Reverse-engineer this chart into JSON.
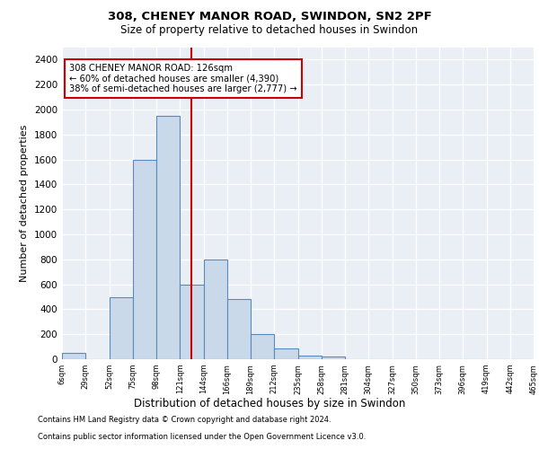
{
  "title1": "308, CHENEY MANOR ROAD, SWINDON, SN2 2PF",
  "title2": "Size of property relative to detached houses in Swindon",
  "xlabel": "Distribution of detached houses by size in Swindon",
  "ylabel": "Number of detached properties",
  "bin_labels": [
    "6sqm",
    "29sqm",
    "52sqm",
    "75sqm",
    "98sqm",
    "121sqm",
    "144sqm",
    "166sqm",
    "189sqm",
    "212sqm",
    "235sqm",
    "258sqm",
    "281sqm",
    "304sqm",
    "327sqm",
    "350sqm",
    "373sqm",
    "396sqm",
    "419sqm",
    "442sqm",
    "465sqm"
  ],
  "bar_values": [
    50,
    0,
    500,
    1600,
    1950,
    600,
    800,
    480,
    200,
    85,
    30,
    20,
    0,
    0,
    0,
    0,
    0,
    0,
    0,
    0
  ],
  "bar_color": "#c9d9ea",
  "bar_edge_color": "#5b8ab8",
  "vline_x": 5.5,
  "vline_color": "#cc0000",
  "annotation_text": "308 CHENEY MANOR ROAD: 126sqm\n← 60% of detached houses are smaller (4,390)\n38% of semi-detached houses are larger (2,777) →",
  "annotation_box_color": "#ffffff",
  "annotation_box_edge": "#cc0000",
  "ylim": [
    0,
    2500
  ],
  "yticks": [
    0,
    200,
    400,
    600,
    800,
    1000,
    1200,
    1400,
    1600,
    1800,
    2000,
    2200,
    2400
  ],
  "footnote1": "Contains HM Land Registry data © Crown copyright and database right 2024.",
  "footnote2": "Contains public sector information licensed under the Open Government Licence v3.0.",
  "plot_bg_color": "#eaeff6"
}
